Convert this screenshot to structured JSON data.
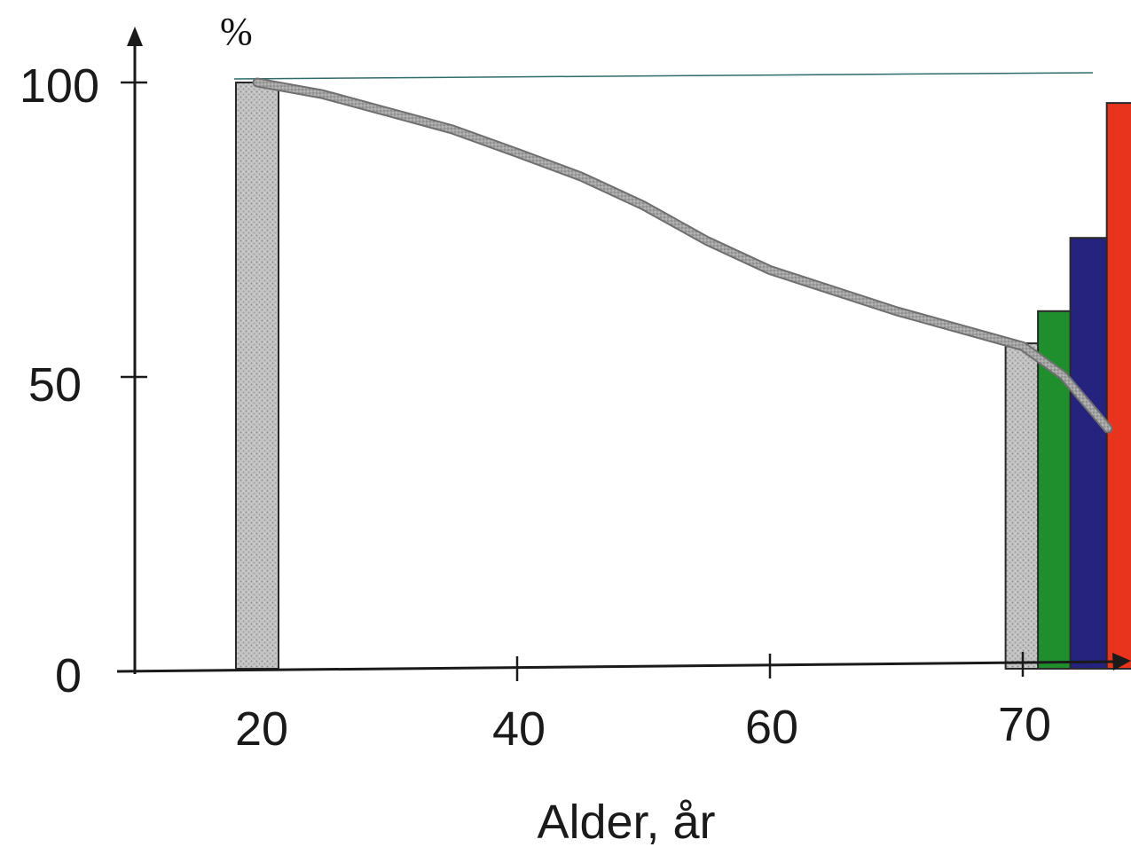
{
  "chart_data": {
    "type": "bar",
    "title": "",
    "ylabel": "%",
    "xlabel": "Alder, år",
    "ylim": [
      0,
      100
    ],
    "y_ticks": [
      "0",
      "50",
      "100"
    ],
    "x_ticks": [
      "20",
      "40",
      "60",
      "70"
    ],
    "reference_line": {
      "y": 101,
      "color": "#2e6b6b"
    },
    "bars": [
      {
        "x": 20,
        "value": 100,
        "color": "#b9b9b9",
        "pattern": "speckled"
      },
      {
        "x": 70.1,
        "value": 55.5,
        "color": "#b9b9b9",
        "pattern": "speckled"
      },
      {
        "x": 70.9,
        "value": 61,
        "color": "#1f8f2e"
      },
      {
        "x": 71.7,
        "value": 73.5,
        "color": "#25237e"
      },
      {
        "x": 72.6,
        "value": 96.5,
        "color": "#e8341c"
      }
    ],
    "curve": {
      "color": "#9a9a9a",
      "points": [
        [
          20,
          100
        ],
        [
          25,
          98
        ],
        [
          30,
          95
        ],
        [
          35,
          92
        ],
        [
          40,
          88
        ],
        [
          45,
          84
        ],
        [
          50,
          79
        ],
        [
          55,
          73
        ],
        [
          60,
          68
        ],
        [
          65,
          61
        ],
        [
          70,
          55
        ],
        [
          71,
          50
        ],
        [
          72.1,
          41
        ]
      ]
    }
  }
}
